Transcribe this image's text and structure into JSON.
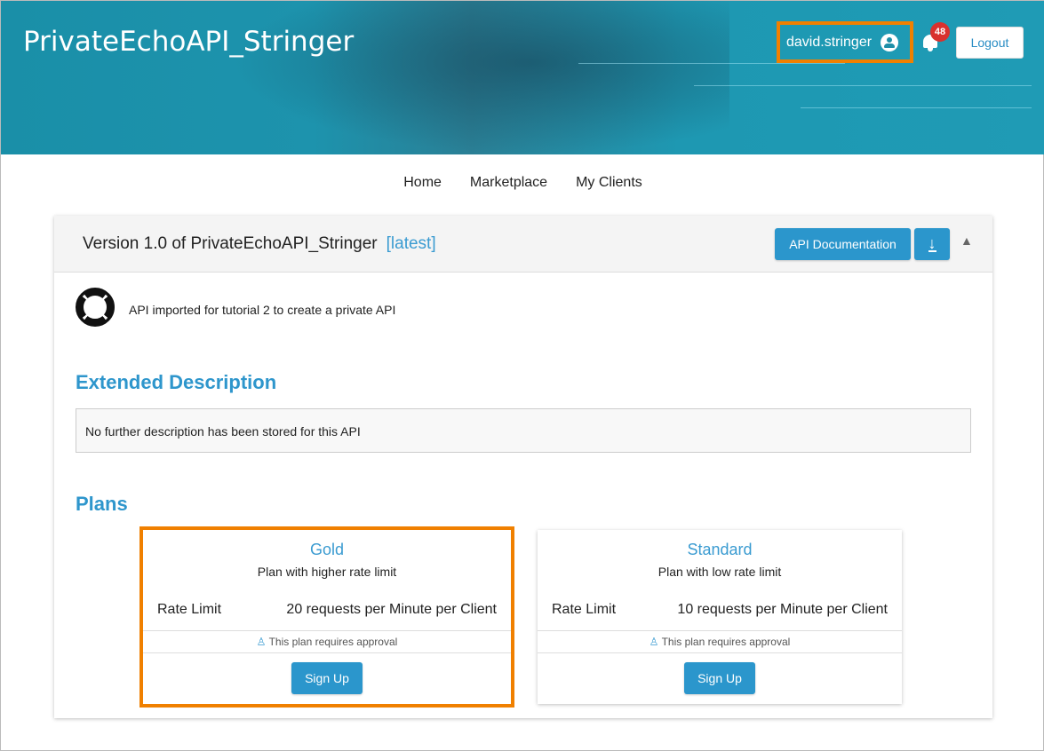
{
  "header": {
    "app_title": "PrivateEchoAPI_Stringer",
    "username": "david.stringer",
    "notification_count": "48",
    "logout_label": "Logout"
  },
  "nav": {
    "items": [
      "Home",
      "Marketplace",
      "My Clients"
    ]
  },
  "api": {
    "version_title": "Version 1.0 of PrivateEchoAPI_Stringer",
    "latest_tag": "[latest]",
    "api_doc_label": "API Documentation",
    "summary": "API imported for tutorial 2 to create a private API"
  },
  "extended": {
    "heading": "Extended Description",
    "text": "No further description has been stored for this API"
  },
  "plans": {
    "heading": "Plans",
    "items": [
      {
        "name": "Gold",
        "description": "Plan with higher rate limit",
        "rate_label": "Rate Limit",
        "rate_value": "20 requests per Minute per Client",
        "approval": "This plan requires approval",
        "signup_label": "Sign Up"
      },
      {
        "name": "Standard",
        "description": "Plan with low rate limit",
        "rate_label": "Rate Limit",
        "rate_value": "10 requests per Minute per Client",
        "approval": "This plan requires approval",
        "signup_label": "Sign Up"
      }
    ]
  },
  "colors": {
    "accent": "#2b96cc",
    "highlight": "#f08000",
    "badge": "#d9312e"
  }
}
